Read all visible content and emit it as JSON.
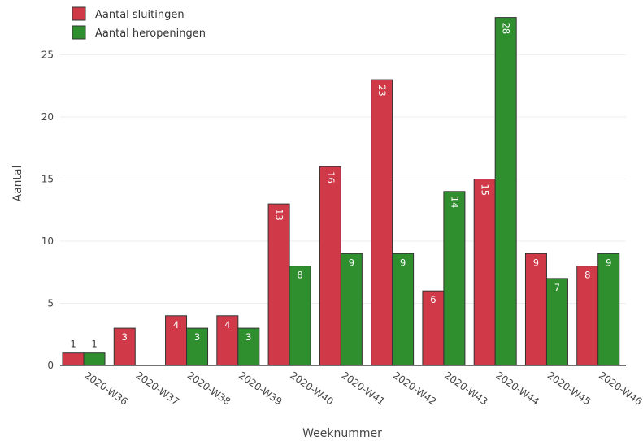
{
  "chart_data": {
    "type": "bar",
    "categories": [
      "2020-W36",
      "2020-W37",
      "2020-W38",
      "2020-W39",
      "2020-W40",
      "2020-W41",
      "2020-W42",
      "2020-W43",
      "2020-W44",
      "2020-W45",
      "2020-W46"
    ],
    "series": [
      {
        "name": "Aantal sluitingen",
        "color": "#d03a48",
        "values": [
          1,
          3,
          4,
          4,
          13,
          16,
          23,
          6,
          15,
          9,
          8
        ]
      },
      {
        "name": "Aantal heropeningen",
        "color": "#2f8f2f",
        "values": [
          1,
          0,
          3,
          3,
          8,
          9,
          9,
          14,
          28,
          7,
          9
        ]
      }
    ],
    "xlabel": "Weeknummer",
    "ylabel": "Aantal",
    "ylim": [
      0,
      28
    ],
    "yticks": [
      0,
      5,
      10,
      15,
      20,
      25
    ],
    "grid": true,
    "legend_position": "top-left"
  }
}
